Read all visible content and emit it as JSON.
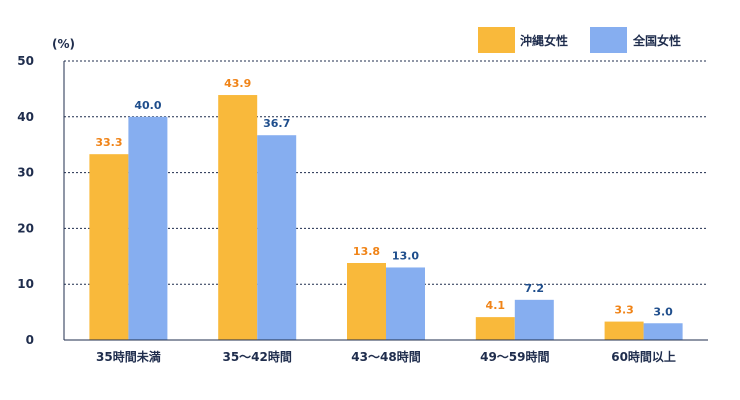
{
  "chart_data": {
    "type": "bar",
    "unit_label": "(%)",
    "categories": [
      "35時間未満",
      "35～42時間",
      "43～48時間",
      "49～59時間",
      "60時間以上"
    ],
    "series": [
      {
        "name": "沖縄女性",
        "color": "#f9b93b",
        "label_color": "#f08418",
        "values": [
          33.3,
          43.9,
          13.8,
          4.1,
          3.3
        ],
        "value_labels": [
          "33.3",
          "43.9",
          "13.8",
          "4.1",
          "3.3"
        ]
      },
      {
        "name": "全国女性",
        "color": "#86aef0",
        "label_color": "#1f4e8c",
        "values": [
          40.0,
          36.7,
          13.0,
          7.2,
          3.0
        ],
        "value_labels": [
          "40.0",
          "36.7",
          "13.0",
          "7.2",
          "3.0"
        ]
      }
    ],
    "ylim": [
      0,
      50
    ],
    "yticks": [
      0,
      10,
      20,
      30,
      40,
      50
    ],
    "ytick_labels": [
      "0",
      "10",
      "20",
      "30",
      "40",
      "50"
    ],
    "grid": true,
    "legend_position": "top-right",
    "axis_color": "#1f2d4d"
  }
}
